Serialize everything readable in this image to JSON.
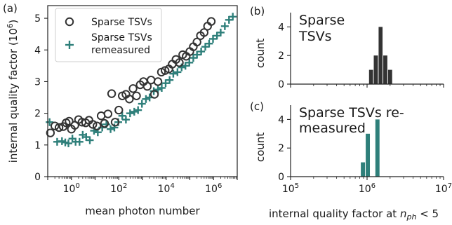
{
  "colors": {
    "sparse": "#333333",
    "remeasured": "#2e7f7a"
  },
  "chart_data": [
    {
      "panel": "(a)",
      "type": "scatter",
      "xlabel": "mean photon number",
      "ylabel": "internal quality factor (10",
      "ylabel_sup": "6",
      "ylabel_close": ")",
      "xscale": "log",
      "xlim": [
        0.1,
        10000000
      ],
      "ylim": [
        0,
        5.4
      ],
      "x_ticks": [
        1,
        100,
        10000,
        1000000
      ],
      "x_tick_labels": [
        "10",
        "10",
        "10",
        "10"
      ],
      "x_tick_sups": [
        "0",
        "2",
        "4",
        "6"
      ],
      "y_ticks": [
        0,
        1,
        2,
        3,
        4,
        5
      ],
      "y_tick_labels": [
        "0",
        "1",
        "2",
        "3",
        "4",
        "5"
      ],
      "legend": {
        "position": "top-left",
        "entries": [
          "Sparse TSVs",
          "Sparse TSVs remeasured"
        ]
      },
      "series": [
        {
          "name": "Sparse TSVs",
          "marker": "circle",
          "x": [
            0.13,
            0.2,
            0.3,
            0.45,
            0.6,
            0.8,
            1.0,
            1.4,
            2.0,
            2.8,
            4.0,
            5.5,
            8.0,
            12,
            18,
            25,
            35,
            50,
            70,
            100,
            140,
            200,
            280,
            400,
            560,
            800,
            1100,
            1600,
            2300,
            3200,
            4500,
            6300,
            9000,
            13000,
            18000,
            26000,
            36000,
            50000,
            70000,
            100000,
            140000,
            200000,
            280000,
            400000,
            560000,
            800000
          ],
          "y": [
            1.38,
            1.6,
            1.55,
            1.58,
            1.7,
            1.75,
            1.5,
            1.62,
            1.8,
            1.72,
            1.7,
            1.78,
            1.65,
            1.6,
            1.92,
            1.68,
            1.98,
            2.62,
            1.72,
            2.1,
            2.55,
            2.6,
            2.45,
            2.78,
            2.55,
            2.9,
            3.0,
            2.85,
            3.05,
            2.6,
            3.0,
            3.3,
            3.35,
            3.4,
            3.55,
            3.7,
            3.6,
            3.85,
            3.8,
            3.95,
            4.1,
            4.25,
            4.45,
            4.55,
            4.75,
            4.9
          ]
        },
        {
          "name": "Sparse TSVs remeasured",
          "marker": "plus",
          "x": [
            0.12,
            0.25,
            0.4,
            0.55,
            0.75,
            1.1,
            1.5,
            2.2,
            3.0,
            4.2,
            6.0,
            9.0,
            13,
            20,
            30,
            45,
            65,
            95,
            140,
            200,
            300,
            450,
            650,
            950,
            1400,
            2000,
            3000,
            4500,
            6500,
            9500,
            14000,
            20000,
            30000,
            45000,
            65000,
            95000,
            140000,
            200000,
            300000,
            450000,
            650000,
            950000,
            1400000,
            2000000,
            3000000,
            4500000,
            6500000
          ],
          "y": [
            1.72,
            1.1,
            1.12,
            1.08,
            1.05,
            1.2,
            1.1,
            1.1,
            1.32,
            1.25,
            1.15,
            1.45,
            1.4,
            1.55,
            1.65,
            1.5,
            1.55,
            1.72,
            1.92,
            1.8,
            2.0,
            2.05,
            2.1,
            2.3,
            2.45,
            2.5,
            2.7,
            2.75,
            2.8,
            2.95,
            3.05,
            3.25,
            3.3,
            3.45,
            3.5,
            3.6,
            3.75,
            3.85,
            3.95,
            4.1,
            4.2,
            4.35,
            4.45,
            4.55,
            4.75,
            4.95,
            5.05
          ]
        }
      ]
    },
    {
      "panel": "(b)",
      "type": "bar",
      "annotation": [
        "Sparse",
        "TSVs"
      ],
      "ylabel": "count",
      "xscale": "log",
      "xlim": [
        100000,
        10000000
      ],
      "ylim": [
        0,
        5
      ],
      "y_ticks": [
        0,
        2,
        4
      ],
      "y_tick_labels": [
        "0",
        "2",
        "4"
      ],
      "bins": [
        {
          "x0": 1050000,
          "x1": 1210000,
          "count": 1
        },
        {
          "x0": 1210000,
          "x1": 1400000,
          "count": 2
        },
        {
          "x0": 1400000,
          "x1": 1610000,
          "count": 4
        },
        {
          "x0": 1610000,
          "x1": 1860000,
          "count": 2
        },
        {
          "x0": 1860000,
          "x1": 2150000,
          "count": 1
        }
      ]
    },
    {
      "panel": "(c)",
      "type": "bar",
      "annotation": [
        "Sparse TSVs re-",
        "measured"
      ],
      "ylabel": "count",
      "xlabel_pre": "internal quality factor at ",
      "xlabel_n": "n",
      "xlabel_sub": "ph",
      "xlabel_post": " < 5",
      "xscale": "log",
      "xlim": [
        100000,
        10000000
      ],
      "ylim": [
        0,
        5
      ],
      "y_ticks": [
        0,
        2,
        4
      ],
      "y_tick_labels": [
        "0",
        "2",
        "4"
      ],
      "x_ticks": [
        100000,
        1000000,
        10000000
      ],
      "x_tick_labels": [
        "10",
        "10",
        "10"
      ],
      "x_tick_sups": [
        "5",
        "6",
        "7"
      ],
      "bins": [
        {
          "x0": 820000,
          "x1": 950000,
          "count": 1
        },
        {
          "x0": 950000,
          "x1": 1100000,
          "count": 3
        },
        {
          "x0": 1100000,
          "x1": 1270000,
          "count": 0
        },
        {
          "x0": 1270000,
          "x1": 1470000,
          "count": 4
        }
      ]
    }
  ]
}
